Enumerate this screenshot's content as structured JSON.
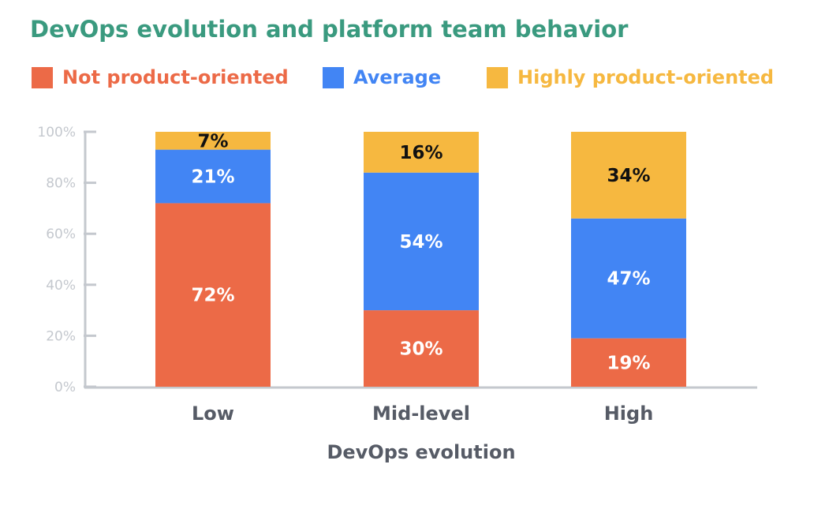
{
  "chart_data": {
    "type": "bar",
    "stacked": true,
    "title": "DevOps evolution and platform team behavior",
    "xlabel": "DevOps evolution",
    "ylabel": "",
    "categories": [
      "Low",
      "Mid-level",
      "High"
    ],
    "ylim": [
      0,
      100
    ],
    "yticks": [
      "0%",
      "20%",
      "40%",
      "60%",
      "80%",
      "100%"
    ],
    "legend_position": "top",
    "grid": false,
    "series": [
      {
        "name": "Not product-oriented",
        "color": "#ec6a47",
        "label_color": "#ffffff",
        "values": [
          72,
          30,
          19
        ],
        "labels": [
          "72%",
          "30%",
          "19%"
        ]
      },
      {
        "name": "Average",
        "color": "#4285f4",
        "label_color": "#ffffff",
        "values": [
          21,
          54,
          47
        ],
        "labels": [
          "21%",
          "54%",
          "47%"
        ]
      },
      {
        "name": "Highly product-oriented",
        "color": "#f6b840",
        "label_color": "#111111",
        "values": [
          7,
          16,
          34
        ],
        "labels": [
          "7%",
          "16%",
          "34%"
        ]
      }
    ]
  },
  "colors": {
    "title": "#3a9a7f",
    "axis": "#c4c8ce",
    "axis_text": "#565b66"
  }
}
